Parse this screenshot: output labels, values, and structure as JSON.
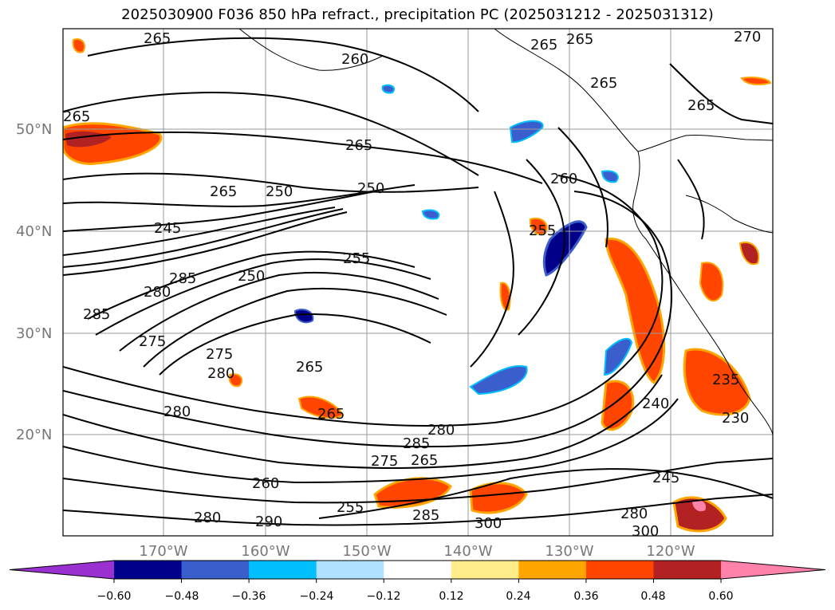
{
  "title": "2025030900 F036 850 hPa refract., precipitation PC (2025031212 - 2025031312)",
  "map": {
    "lat_labels": [
      "50°N",
      "40°N",
      "30°N",
      "20°N"
    ],
    "lon_labels": [
      "170°W",
      "160°W",
      "150°W",
      "140°W",
      "130°W",
      "120°W"
    ],
    "contour_labels": [
      "265",
      "260",
      "265",
      "265",
      "265",
      "265",
      "265",
      "270",
      "265",
      "260",
      "250",
      "245",
      "250",
      "255",
      "255",
      "265",
      "285",
      "275",
      "250",
      "280",
      "285",
      "275",
      "280",
      "265",
      "265",
      "280",
      "280",
      "285",
      "265",
      "275",
      "285",
      "280",
      "290",
      "300",
      "255",
      "260",
      "240",
      "235",
      "230",
      "245",
      "280",
      "300"
    ]
  },
  "colorbar": {
    "ticks": [
      "−0.60",
      "−0.48",
      "−0.36",
      "−0.24",
      "−0.12",
      "0.12",
      "0.24",
      "0.36",
      "0.48",
      "0.60"
    ],
    "colors": [
      "#9b30d0",
      "#00008b",
      "#3a5fcd",
      "#00bfff",
      "#b0e2ff",
      "#ffffff",
      "#ffec8b",
      "#ffa500",
      "#ff4500",
      "#b22222",
      "#ff82ab"
    ]
  }
}
